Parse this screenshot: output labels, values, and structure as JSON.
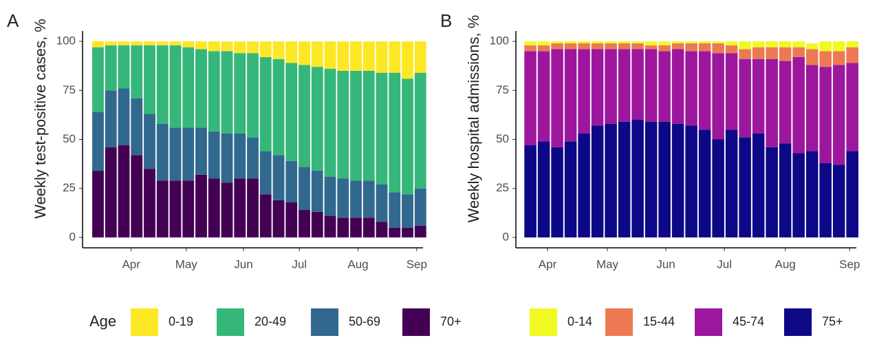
{
  "chart_data": [
    {
      "type": "stacked_bar",
      "panel_label": "A",
      "y_label": "Weekly test-positive cases, %",
      "legend_title": "Age",
      "categories": [
        null,
        null,
        null,
        null,
        null,
        null,
        null,
        null,
        null,
        null,
        null,
        null,
        null,
        null,
        null,
        null,
        null,
        null,
        null,
        null,
        null,
        null,
        null,
        null,
        null,
        null
      ],
      "xlim": [
        -1.2,
        25.2
      ],
      "xticks": [
        {
          "value": 2.57,
          "label": "Apr"
        },
        {
          "value": 6.84,
          "label": "May"
        },
        {
          "value": 11.28,
          "label": "Jun"
        },
        {
          "value": 15.61,
          "label": "Jul"
        },
        {
          "value": 20.16,
          "label": "Aug"
        },
        {
          "value": 24.71,
          "label": "Sep"
        }
      ],
      "ylim": [
        -5.3,
        105.3
      ],
      "yticks": [
        0,
        25,
        50,
        75,
        100
      ],
      "grid": false,
      "series": [
        {
          "name": "70+",
          "color": "#440154",
          "values": [
            34,
            46,
            47,
            42,
            35,
            29,
            29,
            29,
            32,
            30,
            28,
            30,
            30,
            22,
            19,
            18,
            14,
            13,
            11,
            10,
            10,
            10,
            8,
            5,
            5,
            6
          ]
        },
        {
          "name": "50-69",
          "color": "#31688e",
          "values": [
            30,
            29,
            29,
            29,
            28,
            29,
            27,
            27,
            24,
            24,
            25,
            23,
            21,
            22,
            23,
            21,
            22,
            21,
            20,
            20,
            19,
            19,
            19,
            18,
            17,
            19
          ]
        },
        {
          "name": "20-49",
          "color": "#35b779",
          "values": [
            33,
            23,
            22,
            27,
            35,
            40,
            42,
            41,
            40,
            41,
            42,
            41,
            43,
            48,
            49,
            50,
            52,
            53,
            55,
            55,
            56,
            56,
            57,
            61,
            59,
            59
          ]
        },
        {
          "name": "0-19",
          "color": "#fde725",
          "values": [
            3,
            2,
            2,
            2,
            2,
            2,
            2,
            3,
            4,
            5,
            5,
            6,
            6,
            8,
            9,
            11,
            12,
            13,
            14,
            15,
            15,
            15,
            16,
            16,
            19,
            16
          ]
        }
      ]
    },
    {
      "type": "stacked_bar",
      "panel_label": "B",
      "y_label": "Weekly hospital admissions, %",
      "categories": [
        null,
        null,
        null,
        null,
        null,
        null,
        null,
        null,
        null,
        null,
        null,
        null,
        null,
        null,
        null,
        null,
        null,
        null,
        null,
        null,
        null,
        null,
        null,
        null,
        null
      ],
      "xlim": [
        -1.08,
        24.3
      ],
      "xticks": [
        {
          "value": 1.28,
          "label": "Apr"
        },
        {
          "value": 5.74,
          "label": "May"
        },
        {
          "value": 10.1,
          "label": "Jun"
        },
        {
          "value": 14.46,
          "label": "Jul"
        },
        {
          "value": 19.0,
          "label": "Aug"
        },
        {
          "value": 23.8,
          "label": "Sep"
        }
      ],
      "ylim": [
        -5.3,
        105.3
      ],
      "yticks": [
        0,
        25,
        50,
        75,
        100
      ],
      "grid": false,
      "series": [
        {
          "name": "75+",
          "color": "#0d0887",
          "values": [
            47,
            49,
            46,
            49,
            53,
            57,
            58,
            59,
            60,
            59,
            59,
            58,
            57,
            55,
            50,
            55,
            51,
            53,
            46,
            48,
            43,
            44,
            38,
            37,
            44
          ]
        },
        {
          "name": "45-74",
          "color": "#9c179e",
          "values": [
            48,
            46,
            50,
            47,
            43,
            39,
            38,
            37,
            36,
            37,
            36,
            38,
            38,
            40,
            44,
            39,
            40,
            38,
            45,
            42,
            49,
            44,
            49,
            51,
            45
          ]
        },
        {
          "name": "15-44",
          "color": "#ed7953",
          "values": [
            3,
            3,
            3,
            3,
            3,
            3,
            3,
            3,
            3,
            2,
            3,
            3,
            4,
            4,
            5,
            4,
            5,
            6,
            6,
            7,
            5,
            8,
            8,
            7,
            8
          ]
        },
        {
          "name": "0-14",
          "color": "#f0f921",
          "values": [
            2,
            2,
            1,
            1,
            1,
            1,
            1,
            1,
            1,
            2,
            2,
            1,
            1,
            1,
            1,
            2,
            4,
            3,
            3,
            3,
            3,
            3,
            5,
            5,
            3
          ]
        }
      ]
    }
  ]
}
